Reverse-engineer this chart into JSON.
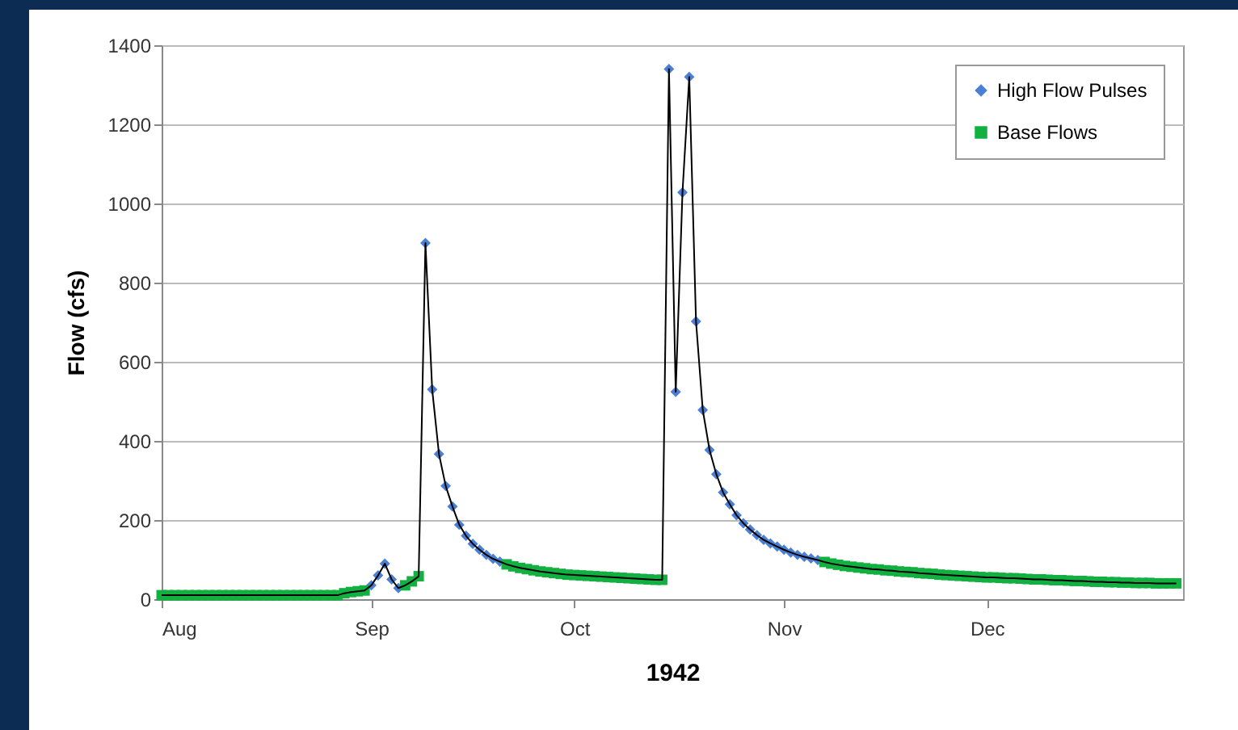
{
  "chart_data": {
    "type": "scatter",
    "xlabel": "1942",
    "ylabel": "Flow (cfs)",
    "xlim": [
      "1942-08-01",
      "1942-12-30"
    ],
    "xticks": [
      {
        "value": "1942-08-01",
        "label": "Aug"
      },
      {
        "value": "1942-09-01",
        "label": "Sep"
      },
      {
        "value": "1942-10-01",
        "label": "Oct"
      },
      {
        "value": "1942-11-01",
        "label": "Nov"
      },
      {
        "value": "1942-12-01",
        "label": "Dec"
      }
    ],
    "ylim": [
      0,
      1400
    ],
    "yticks": [
      0,
      200,
      400,
      600,
      800,
      1000,
      1200,
      1400
    ],
    "grid": "y",
    "legend": "top right",
    "x": [
      "1942-08-01",
      "1942-08-02",
      "1942-08-03",
      "1942-08-04",
      "1942-08-05",
      "1942-08-06",
      "1942-08-07",
      "1942-08-08",
      "1942-08-09",
      "1942-08-10",
      "1942-08-11",
      "1942-08-12",
      "1942-08-13",
      "1942-08-14",
      "1942-08-15",
      "1942-08-16",
      "1942-08-17",
      "1942-08-18",
      "1942-08-19",
      "1942-08-20",
      "1942-08-21",
      "1942-08-22",
      "1942-08-23",
      "1942-08-24",
      "1942-08-25",
      "1942-08-26",
      "1942-08-27",
      "1942-08-28",
      "1942-08-29",
      "1942-08-30",
      "1942-08-31",
      "1942-09-01",
      "1942-09-02",
      "1942-09-03",
      "1942-09-04",
      "1942-09-05",
      "1942-09-06",
      "1942-09-07",
      "1942-09-08",
      "1942-09-09",
      "1942-09-10",
      "1942-09-11",
      "1942-09-12",
      "1942-09-13",
      "1942-09-14",
      "1942-09-15",
      "1942-09-16",
      "1942-09-17",
      "1942-09-18",
      "1942-09-19",
      "1942-09-20",
      "1942-09-21",
      "1942-09-22",
      "1942-09-23",
      "1942-09-24",
      "1942-09-25",
      "1942-09-26",
      "1942-09-27",
      "1942-09-28",
      "1942-09-29",
      "1942-09-30",
      "1942-10-01",
      "1942-10-02",
      "1942-10-03",
      "1942-10-04",
      "1942-10-05",
      "1942-10-06",
      "1942-10-07",
      "1942-10-08",
      "1942-10-09",
      "1942-10-10",
      "1942-10-11",
      "1942-10-12",
      "1942-10-13",
      "1942-10-14",
      "1942-10-15",
      "1942-10-16",
      "1942-10-17",
      "1942-10-18",
      "1942-10-19",
      "1942-10-20",
      "1942-10-21",
      "1942-10-22",
      "1942-10-23",
      "1942-10-24",
      "1942-10-25",
      "1942-10-26",
      "1942-10-27",
      "1942-10-28",
      "1942-10-29",
      "1942-10-30",
      "1942-10-31",
      "1942-11-01",
      "1942-11-02",
      "1942-11-03",
      "1942-11-04",
      "1942-11-05",
      "1942-11-06",
      "1942-11-07",
      "1942-11-08",
      "1942-11-09",
      "1942-11-10",
      "1942-11-11",
      "1942-11-12",
      "1942-11-13",
      "1942-11-14",
      "1942-11-15",
      "1942-11-16",
      "1942-11-17",
      "1942-11-18",
      "1942-11-19",
      "1942-11-20",
      "1942-11-21",
      "1942-11-22",
      "1942-11-23",
      "1942-11-24",
      "1942-11-25",
      "1942-11-26",
      "1942-11-27",
      "1942-11-28",
      "1942-11-29",
      "1942-11-30",
      "1942-12-01",
      "1942-12-02",
      "1942-12-03",
      "1942-12-04",
      "1942-12-05",
      "1942-12-06",
      "1942-12-07",
      "1942-12-08",
      "1942-12-09",
      "1942-12-10",
      "1942-12-11",
      "1942-12-12",
      "1942-12-13",
      "1942-12-14",
      "1942-12-15",
      "1942-12-16",
      "1942-12-17",
      "1942-12-18",
      "1942-12-19",
      "1942-12-20",
      "1942-12-21",
      "1942-12-22",
      "1942-12-23",
      "1942-12-24",
      "1942-12-25",
      "1942-12-26",
      "1942-12-27",
      "1942-12-28",
      "1942-12-29"
    ],
    "series": [
      {
        "type": "line",
        "color": "#000000",
        "marker": "none",
        "values": [
          10,
          10,
          10,
          10,
          10,
          10,
          10,
          10,
          10,
          10,
          10,
          10,
          10,
          10,
          10,
          10,
          10,
          10,
          10,
          10,
          10,
          10,
          10,
          10,
          10,
          10,
          10,
          15,
          18,
          20,
          22,
          35,
          60,
          90,
          50,
          28,
          35,
          45,
          58,
          900,
          530,
          367,
          286,
          234,
          188,
          160,
          140,
          125,
          112,
          102,
          95,
          88,
          83,
          79,
          76,
          73,
          70,
          68,
          66,
          64,
          62,
          61,
          60,
          59,
          58,
          57,
          56,
          55,
          54,
          53,
          52,
          51,
          50,
          49,
          49,
          1340,
          524,
          1028,
          1320,
          702,
          478,
          377,
          316,
          270,
          240,
          212,
          192,
          176,
          162,
          150,
          141,
          133,
          125,
          118,
          112,
          107,
          103,
          99,
          94,
          90,
          87,
          84,
          82,
          80,
          78,
          76,
          75,
          73,
          72,
          70,
          69,
          68,
          66,
          65,
          64,
          62,
          61,
          60,
          59,
          58,
          57,
          56,
          55,
          55,
          54,
          53,
          53,
          52,
          51,
          50,
          50,
          49,
          48,
          48,
          47,
          46,
          46,
          45,
          44,
          44,
          43,
          43,
          42,
          42,
          41,
          41,
          41,
          40,
          40,
          40,
          40
        ]
      },
      {
        "name": "High Flow Pulses",
        "color": "#4a7fd4",
        "marker": "diamond",
        "values": [
          null,
          null,
          null,
          null,
          null,
          null,
          null,
          null,
          null,
          null,
          null,
          null,
          null,
          null,
          null,
          null,
          null,
          null,
          null,
          null,
          null,
          null,
          null,
          null,
          null,
          null,
          null,
          null,
          null,
          null,
          null,
          35,
          60,
          90,
          50,
          28,
          null,
          null,
          null,
          900,
          530,
          367,
          286,
          234,
          188,
          160,
          140,
          125,
          112,
          102,
          95,
          null,
          null,
          null,
          null,
          null,
          null,
          null,
          null,
          null,
          null,
          null,
          null,
          null,
          null,
          null,
          null,
          null,
          null,
          null,
          null,
          null,
          null,
          null,
          null,
          1340,
          524,
          1028,
          1320,
          702,
          478,
          377,
          316,
          270,
          240,
          212,
          192,
          176,
          162,
          150,
          141,
          133,
          125,
          118,
          112,
          107,
          103,
          99,
          null,
          null,
          null,
          null,
          null,
          null,
          null,
          null,
          null,
          null,
          null,
          null,
          null,
          null,
          null,
          null,
          null,
          null,
          null,
          null,
          null,
          null,
          null,
          null,
          null,
          null,
          null,
          null,
          null,
          null,
          null,
          null,
          null,
          null,
          null,
          null,
          null,
          null,
          null,
          null,
          null,
          null,
          null,
          null,
          null,
          null,
          null,
          null,
          null,
          null,
          null,
          null,
          null
        ]
      },
      {
        "name": "Base Flows",
        "color": "#12b040",
        "marker": "square",
        "values": [
          10,
          10,
          10,
          10,
          10,
          10,
          10,
          10,
          10,
          10,
          10,
          10,
          10,
          10,
          10,
          10,
          10,
          10,
          10,
          10,
          10,
          10,
          10,
          10,
          10,
          10,
          10,
          15,
          18,
          20,
          22,
          null,
          null,
          null,
          null,
          null,
          35,
          45,
          58,
          null,
          null,
          null,
          null,
          null,
          null,
          null,
          null,
          null,
          null,
          null,
          null,
          88,
          83,
          79,
          76,
          73,
          70,
          68,
          66,
          64,
          62,
          61,
          60,
          59,
          58,
          57,
          56,
          55,
          54,
          53,
          52,
          51,
          50,
          49,
          49,
          null,
          null,
          null,
          null,
          null,
          null,
          null,
          null,
          null,
          null,
          null,
          null,
          null,
          null,
          null,
          null,
          null,
          null,
          null,
          null,
          null,
          null,
          null,
          94,
          90,
          87,
          84,
          82,
          80,
          78,
          76,
          75,
          73,
          72,
          70,
          69,
          68,
          66,
          65,
          64,
          62,
          61,
          60,
          59,
          58,
          57,
          56,
          55,
          55,
          54,
          53,
          53,
          52,
          51,
          50,
          50,
          49,
          48,
          48,
          47,
          46,
          46,
          45,
          44,
          44,
          43,
          43,
          42,
          42,
          41,
          41,
          41,
          40,
          40,
          40,
          40
        ]
      }
    ]
  }
}
